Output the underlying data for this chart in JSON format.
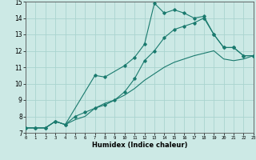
{
  "xlabel": "Humidex (Indice chaleur)",
  "xlim": [
    0,
    23
  ],
  "ylim": [
    7,
    15
  ],
  "yticks": [
    7,
    8,
    9,
    10,
    11,
    12,
    13,
    14,
    15
  ],
  "xticks": [
    0,
    1,
    2,
    3,
    4,
    5,
    6,
    7,
    8,
    9,
    10,
    11,
    12,
    13,
    14,
    15,
    16,
    17,
    18,
    19,
    20,
    21,
    22,
    23
  ],
  "bg_color": "#cce9e5",
  "grid_color": "#aad4cf",
  "line_color": "#1a7a6e",
  "line1_x": [
    0,
    1,
    2,
    3,
    4,
    7,
    8,
    10,
    11,
    12,
    13,
    14,
    15,
    16,
    17,
    18,
    19,
    20,
    21,
    22,
    23
  ],
  "line1_y": [
    7.3,
    7.3,
    7.3,
    7.7,
    7.5,
    10.5,
    10.4,
    11.1,
    11.6,
    12.4,
    14.9,
    14.3,
    14.5,
    14.3,
    14.0,
    14.1,
    13.0,
    12.2,
    12.2,
    11.7,
    11.7
  ],
  "line2_x": [
    0,
    1,
    2,
    3,
    4,
    5,
    6,
    7,
    8,
    9,
    10,
    11,
    12,
    13,
    14,
    15,
    16,
    17,
    18,
    19,
    20,
    21,
    22,
    23
  ],
  "line2_y": [
    7.3,
    7.3,
    7.3,
    7.7,
    7.5,
    8.0,
    8.25,
    8.5,
    8.7,
    9.0,
    9.5,
    10.3,
    11.4,
    12.0,
    12.8,
    13.3,
    13.5,
    13.7,
    14.0,
    13.0,
    12.2,
    12.2,
    11.7,
    11.7
  ],
  "line3_x": [
    0,
    1,
    2,
    3,
    4,
    5,
    6,
    7,
    8,
    9,
    10,
    11,
    12,
    13,
    14,
    15,
    16,
    17,
    18,
    19,
    20,
    21,
    22,
    23
  ],
  "line3_y": [
    7.3,
    7.3,
    7.3,
    7.7,
    7.5,
    7.8,
    8.0,
    8.5,
    8.8,
    9.0,
    9.3,
    9.7,
    10.2,
    10.6,
    11.0,
    11.3,
    11.5,
    11.7,
    11.85,
    12.0,
    11.5,
    11.4,
    11.5,
    11.7
  ]
}
